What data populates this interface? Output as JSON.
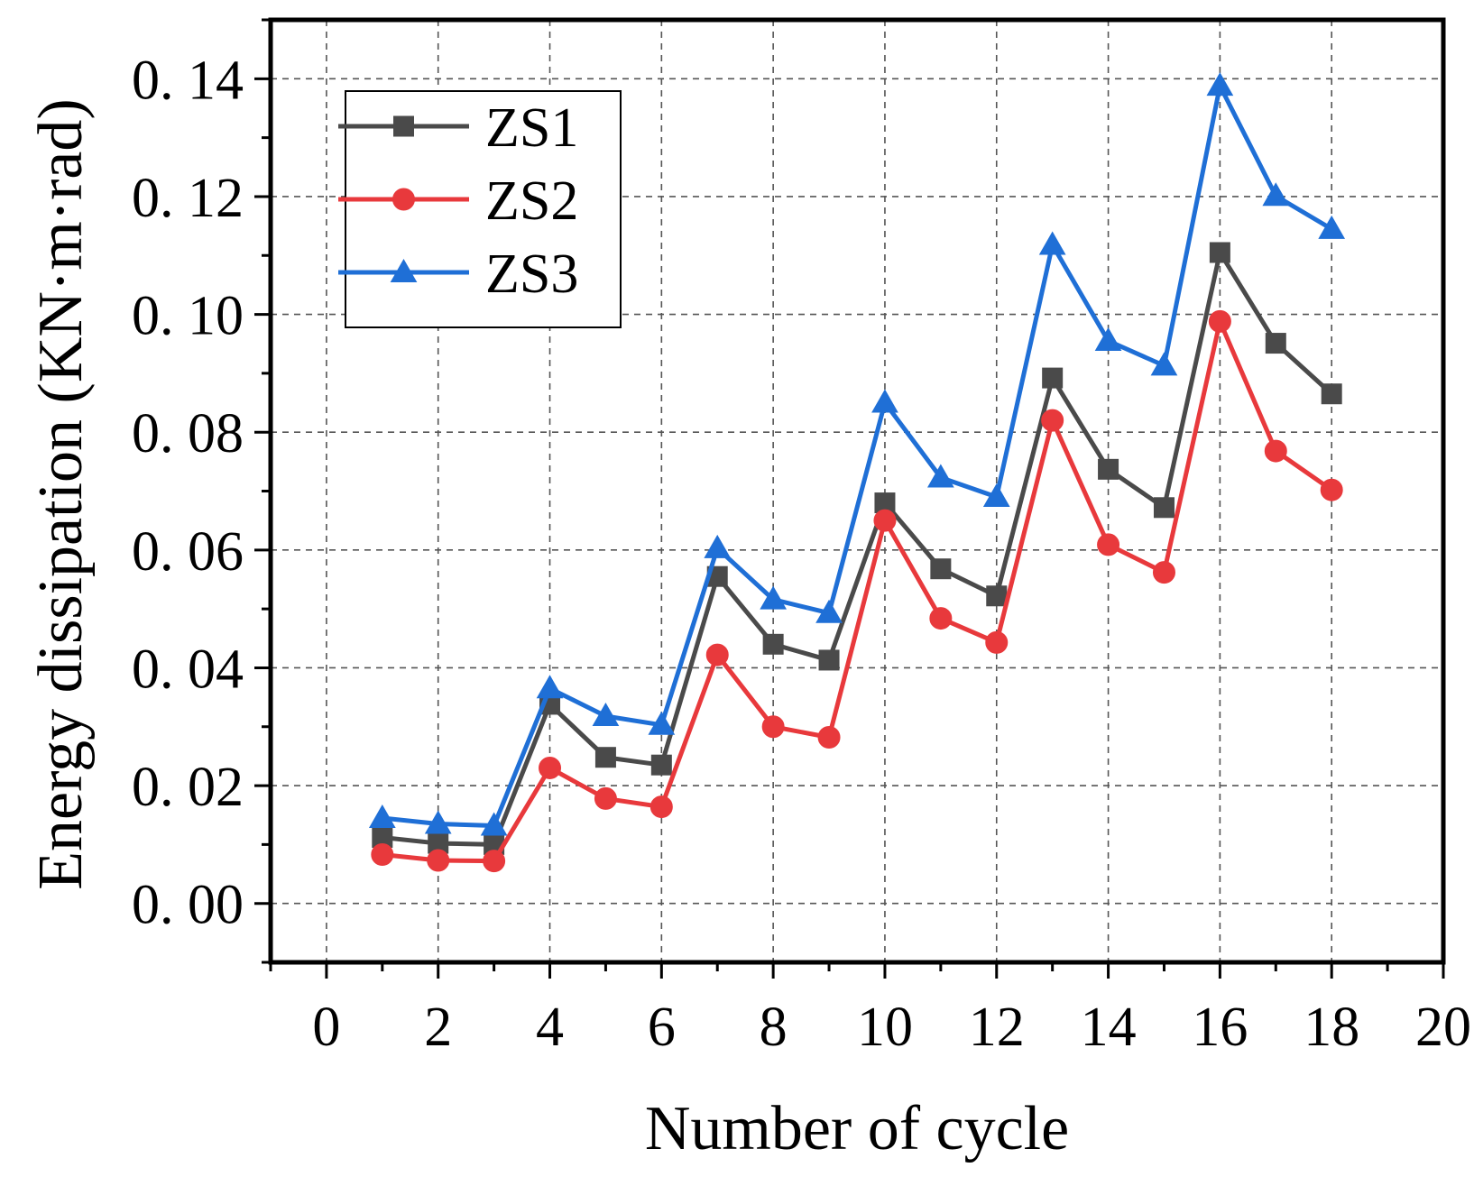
{
  "chart_data": {
    "type": "line",
    "title": "",
    "xlabel": "Number of cycle",
    "ylabel": "Energy dissipation (KN·m·rad)",
    "xlim": [
      -1,
      20
    ],
    "ylim": [
      -0.01,
      0.15
    ],
    "x_ticks": [
      0,
      2,
      4,
      6,
      8,
      10,
      12,
      14,
      16,
      18,
      20
    ],
    "x_tick_labels": [
      "0",
      "2",
      "4",
      "6",
      "8",
      "10",
      "12",
      "14",
      "16",
      "18",
      "20"
    ],
    "y_ticks": [
      0.0,
      0.02,
      0.04,
      0.06,
      0.08,
      0.1,
      0.12,
      0.14
    ],
    "y_tick_labels": [
      "0. 00",
      "0. 02",
      "0. 04",
      "0. 06",
      "0. 08",
      "0. 10",
      "0. 12",
      "0. 14"
    ],
    "grid": true,
    "legend_position": "top-left",
    "x": [
      1,
      2,
      3,
      4,
      5,
      6,
      7,
      8,
      9,
      10,
      11,
      12,
      13,
      14,
      15,
      16,
      17,
      18
    ],
    "series": [
      {
        "name": "ZS1",
        "color": "#4a4a4a",
        "marker": "square",
        "values": [
          0.0112,
          0.0102,
          0.01,
          0.0338,
          0.0248,
          0.0235,
          0.0555,
          0.044,
          0.0413,
          0.068,
          0.0568,
          0.0522,
          0.0892,
          0.0737,
          0.0672,
          0.1105,
          0.0951,
          0.0865
        ]
      },
      {
        "name": "ZS2",
        "color": "#e8393c",
        "marker": "circle",
        "values": [
          0.0083,
          0.0073,
          0.0072,
          0.023,
          0.0178,
          0.0164,
          0.0422,
          0.03,
          0.0282,
          0.065,
          0.0484,
          0.0443,
          0.082,
          0.0609,
          0.0562,
          0.0988,
          0.0768,
          0.0702
        ]
      },
      {
        "name": "ZS3",
        "color": "#1f6fd6",
        "marker": "triangle",
        "values": [
          0.0145,
          0.0135,
          0.0132,
          0.0365,
          0.0318,
          0.0303,
          0.0603,
          0.0516,
          0.0493,
          0.085,
          0.0723,
          0.069,
          0.1118,
          0.0955,
          0.0913,
          0.1388,
          0.1201,
          0.1145
        ]
      }
    ]
  }
}
